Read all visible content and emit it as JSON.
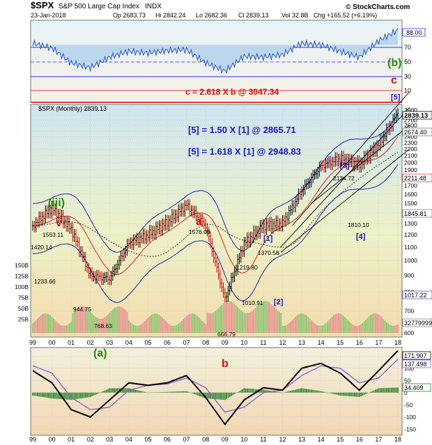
{
  "header": {
    "symbol": "$SPX",
    "name": "S&P 500 Large Cap Index",
    "exchange": "INDX",
    "date": "23-Jan-2018",
    "open": "Op 2683.73",
    "high": "Hi 2842.24",
    "low": "Lo 2682.36",
    "close": "Cl 2839.13",
    "volume": "Vol 32.8B",
    "change": "Chg +165.52 (+6.19%)",
    "copyright": "© StockCharts.com"
  },
  "rsi_panel": {
    "value_label": "88.00",
    "ticks": [
      "70",
      "50",
      "30",
      "10"
    ],
    "value": 88.0,
    "accent": "#0000ff"
  },
  "price_panel": {
    "legend": "$SPX (Monthly) 2839.13",
    "price_ticks": [
      "2900",
      "2800",
      "2700",
      "2600",
      "2500",
      "2400",
      "2300",
      "2200",
      "2100",
      "2000",
      "1900",
      "1800",
      "1700",
      "1600",
      "1500",
      "1400",
      "1300",
      "1200",
      "1100",
      "1000",
      "900",
      "800",
      "700",
      "600"
    ],
    "volume_ticks": [
      "150B",
      "125B",
      "100B",
      "75B",
      "50B",
      "25B"
    ],
    "last_price_label": "2839.13",
    "ma_labels": [
      "2674.40",
      "2211.48",
      "1845.81",
      "1017.22"
    ],
    "volume_label": "32779999",
    "x_labels": [
      "99",
      "00",
      "01",
      "02",
      "03",
      "04",
      "05",
      "06",
      "07",
      "08",
      "09",
      "10",
      "11",
      "12",
      "13",
      "14",
      "15",
      "16",
      "17",
      "18"
    ]
  },
  "annotations": {
    "c_formula": "c = 2.618 X b @ 3047.34",
    "target1": "[5] = 1.50 X [1] @ 2865.71",
    "target2": "[5] = 1.618 X [1] @ 2948.83",
    "wave_b_big": "(b)",
    "wave_c": "c",
    "wave_5_top": "[5]",
    "wave_iii": "(iii)",
    "wave_v": "v",
    "wave_a": "a",
    "wave_1": "[1]",
    "wave_2": "[2]",
    "wave_3": "[3]",
    "wave_4": "[4]",
    "wave_a_bottom": "(a)",
    "wave_b_bottom": "b",
    "peaks": [
      "1553.11",
      "1420.14",
      "1233.66",
      "944.75",
      "768.63",
      "1576.09",
      "666.79",
      "1219.80",
      "1010.91",
      "1370.58",
      "2134.72",
      "1810.10"
    ]
  },
  "macd_panel": {
    "labels": [
      "171.907",
      "137.498",
      "34.409"
    ],
    "ticks": [
      "150",
      "100",
      "50",
      "0",
      "-50",
      "-100",
      "-150"
    ]
  },
  "chart_data": [
    {
      "type": "line",
      "title": "$SPX (Monthly) 2839.13",
      "xlabel": "",
      "ylabel": "",
      "x": [
        "1999",
        "2000",
        "2001",
        "2002",
        "2003",
        "2004",
        "2005",
        "2006",
        "2007",
        "2008",
        "2009",
        "2010",
        "2011",
        "2012",
        "2013",
        "2014",
        "2015",
        "2016",
        "2017",
        "2018"
      ],
      "series": [
        {
          "name": "$SPX",
          "values": [
            1280,
            1450,
            1250,
            900,
            880,
            1130,
            1200,
            1310,
            1480,
            1280,
            760,
            1130,
            1280,
            1300,
            1640,
            1950,
            2060,
            1970,
            2270,
            2839
          ]
        }
      ],
      "ylim": [
        600,
        2900
      ],
      "log_scale": true,
      "grid": true
    },
    {
      "type": "line",
      "title": "",
      "x": [
        "1999",
        "2000",
        "2001",
        "2002",
        "2003",
        "2004",
        "2005",
        "2006",
        "2007",
        "2008",
        "2009",
        "2010",
        "2011",
        "2012",
        "2013",
        "2014",
        "2015",
        "2016",
        "2017",
        "2018"
      ],
      "series": [
        {
          "name": "",
          "values": [
            72,
            66,
            48,
            42,
            55,
            62,
            60,
            63,
            64,
            48,
            38,
            56,
            55,
            58,
            72,
            70,
            62,
            55,
            75,
            88
          ]
        }
      ],
      "ylim": [
        0,
        100
      ]
    },
    {
      "type": "line",
      "title": "",
      "x": [
        "1999",
        "2000",
        "2001",
        "2002",
        "2003",
        "2004",
        "2005",
        "2006",
        "2007",
        "2008",
        "2009",
        "2010",
        "2011",
        "2012",
        "2013",
        "2014",
        "2015",
        "2016",
        "2017",
        "2018"
      ],
      "series": [
        {
          "name": "",
          "values": [
            90,
            40,
            -70,
            -100,
            -30,
            40,
            30,
            40,
            70,
            -20,
            -130,
            -30,
            20,
            10,
            100,
            120,
            80,
            10,
            90,
            172
          ]
        },
        {
          "name": "",
          "values": [
            110,
            80,
            -20,
            -70,
            -60,
            10,
            30,
            35,
            60,
            20,
            -80,
            -60,
            0,
            10,
            70,
            110,
            100,
            40,
            60,
            137
          ]
        }
      ],
      "ylim": [
        -160,
        180
      ]
    }
  ]
}
